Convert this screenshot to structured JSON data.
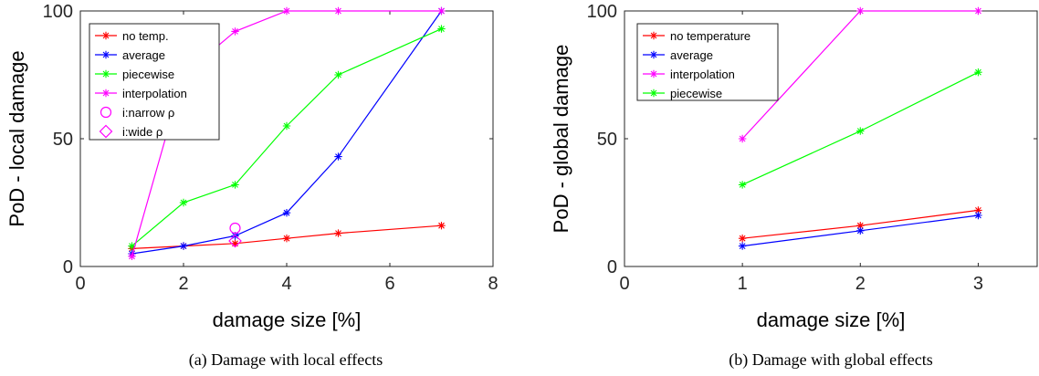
{
  "chart_data": [
    {
      "type": "line",
      "caption": "(a)  Damage with local effects",
      "xlabel": "damage size [%]",
      "ylabel": "PoD - local damage",
      "xlim": [
        0,
        8
      ],
      "ylim": [
        0,
        100
      ],
      "xticks": [
        "0",
        "2",
        "4",
        "6",
        "8"
      ],
      "yticks": [
        "0",
        "50",
        "100"
      ],
      "grid": false,
      "legend_position": "top-left",
      "series": [
        {
          "name": "no temp.",
          "color": "#ff0000",
          "marker": "asterisk",
          "x": [
            1,
            2,
            3,
            4,
            5,
            7
          ],
          "y": [
            7,
            8,
            9,
            11,
            13,
            16
          ]
        },
        {
          "name": "average",
          "color": "#0000ff",
          "marker": "asterisk",
          "x": [
            1,
            2,
            3,
            4,
            5,
            7
          ],
          "y": [
            5,
            8,
            12,
            21,
            43,
            100
          ]
        },
        {
          "name": "piecewise",
          "color": "#00ff00",
          "marker": "asterisk",
          "x": [
            1,
            2,
            3,
            4,
            5,
            7
          ],
          "y": [
            8,
            25,
            32,
            55,
            75,
            93
          ]
        },
        {
          "name": "interpolation",
          "color": "#ff00ff",
          "marker": "asterisk",
          "x": [
            1,
            2,
            3,
            4,
            5,
            7
          ],
          "y": [
            4,
            75,
            92,
            100,
            100,
            100
          ]
        },
        {
          "name": "i:narrow ρ",
          "color": "#ff00ff",
          "marker": "circle",
          "x": [
            3
          ],
          "y": [
            15
          ],
          "line": false
        },
        {
          "name": "i:wide ρ",
          "color": "#ff00ff",
          "marker": "diamond",
          "x": [
            3
          ],
          "y": [
            10
          ],
          "line": false
        }
      ]
    },
    {
      "type": "line",
      "caption": "(b)  Damage with global effects",
      "xlabel": "damage size [%]",
      "ylabel": "PoD - global damage",
      "xlim": [
        0,
        3.5
      ],
      "ylim": [
        0,
        100
      ],
      "xticks": [
        "0",
        "1",
        "2",
        "3"
      ],
      "yticks": [
        "0",
        "50",
        "100"
      ],
      "grid": false,
      "legend_position": "top-left",
      "series": [
        {
          "name": "no temperature",
          "color": "#ff0000",
          "marker": "asterisk",
          "x": [
            1,
            2,
            3
          ],
          "y": [
            11,
            16,
            22
          ]
        },
        {
          "name": "average",
          "color": "#0000ff",
          "marker": "asterisk",
          "x": [
            1,
            2,
            3
          ],
          "y": [
            8,
            14,
            20
          ]
        },
        {
          "name": "interpolation",
          "color": "#ff00ff",
          "marker": "asterisk",
          "x": [
            1,
            2,
            3
          ],
          "y": [
            50,
            100,
            100
          ]
        },
        {
          "name": "piecewise",
          "color": "#00ff00",
          "marker": "asterisk",
          "x": [
            1,
            2,
            3
          ],
          "y": [
            32,
            53,
            76
          ]
        }
      ]
    }
  ]
}
